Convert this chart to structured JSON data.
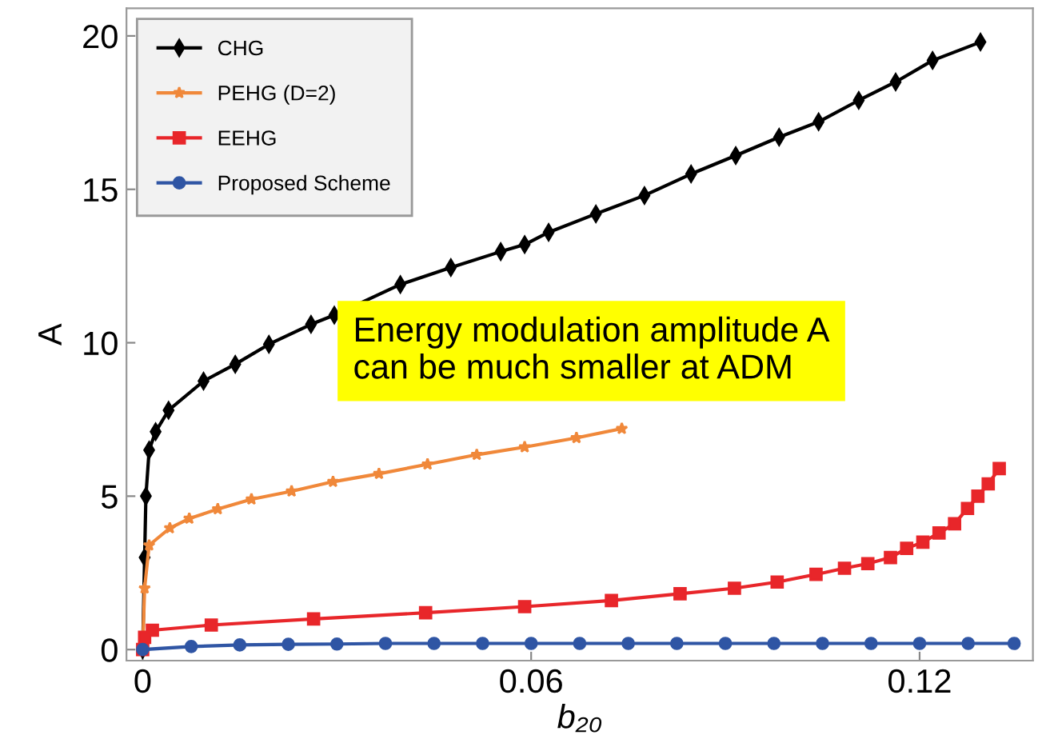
{
  "chart_data": {
    "type": "line",
    "xlabel": "b₂₀",
    "ylabel": "A",
    "xlim": [
      -0.0025,
      0.1375
    ],
    "ylim": [
      -0.36,
      20.9
    ],
    "xticks": [
      0,
      0.06,
      0.12
    ],
    "yticks": [
      0,
      5,
      10,
      15,
      20
    ],
    "grid": false,
    "legend": "top left",
    "annotations": [
      "Energy modulation amplitude A\ncan be much smaller at ADM"
    ],
    "series": [
      {
        "name": "CHG",
        "color": "#000000",
        "marker": "diamond",
        "x": [
          0,
          0.0003,
          0.0005,
          0.001,
          0.002,
          0.004,
          0.0094,
          0.0143,
          0.0195,
          0.026,
          0.0296,
          0.0398,
          0.0476,
          0.0553,
          0.059,
          0.0627,
          0.07,
          0.0775,
          0.0847,
          0.0916,
          0.0983,
          0.1044,
          0.1106,
          0.1163,
          0.122,
          0.1294
        ],
        "values": [
          0,
          3,
          5,
          6.5,
          7.1,
          7.8,
          8.75,
          9.3,
          9.95,
          10.6,
          10.9,
          11.9,
          12.45,
          12.97,
          13.2,
          13.6,
          14.2,
          14.8,
          15.5,
          16.1,
          16.7,
          17.2,
          17.9,
          18.5,
          19.2,
          19.8
        ]
      },
      {
        "name": "PEHG (D=2)",
        "color": "#f0883a",
        "marker": "star",
        "x": [
          0,
          0.0003,
          0.001,
          0.0042,
          0.0072,
          0.0116,
          0.0168,
          0.023,
          0.0294,
          0.0365,
          0.044,
          0.0516,
          0.059,
          0.067,
          0.074
        ],
        "values": [
          0,
          2,
          3.4,
          3.96,
          4.27,
          4.58,
          4.9,
          5.16,
          5.47,
          5.73,
          6.04,
          6.35,
          6.6,
          6.9,
          7.2
        ]
      },
      {
        "name": "EEHG",
        "color": "#e8262a",
        "marker": "square",
        "x": [
          0,
          0.0003,
          0.0015,
          0.0106,
          0.0264,
          0.0437,
          0.059,
          0.0724,
          0.083,
          0.0914,
          0.098,
          0.104,
          0.1084,
          0.112,
          0.1155,
          0.118,
          0.1205,
          0.123,
          0.1254,
          0.1274,
          0.129,
          0.1306,
          0.1323
        ],
        "values": [
          0,
          0.4,
          0.63,
          0.8,
          1.0,
          1.2,
          1.4,
          1.6,
          1.82,
          2.0,
          2.2,
          2.45,
          2.65,
          2.8,
          3.0,
          3.3,
          3.5,
          3.8,
          4.1,
          4.6,
          5.0,
          5.4,
          5.9
        ]
      },
      {
        "name": "Proposed Scheme",
        "color": "#2f55a4",
        "marker": "circle",
        "x": [
          0,
          0.0075,
          0.015,
          0.0225,
          0.03,
          0.0375,
          0.045,
          0.0525,
          0.06,
          0.0675,
          0.075,
          0.0825,
          0.09,
          0.0975,
          0.105,
          0.1125,
          0.12,
          0.1275,
          0.1346
        ],
        "values": [
          0,
          0.1,
          0.15,
          0.17,
          0.18,
          0.2,
          0.2,
          0.2,
          0.2,
          0.2,
          0.2,
          0.2,
          0.2,
          0.2,
          0.2,
          0.2,
          0.2,
          0.2,
          0.2
        ]
      }
    ]
  }
}
